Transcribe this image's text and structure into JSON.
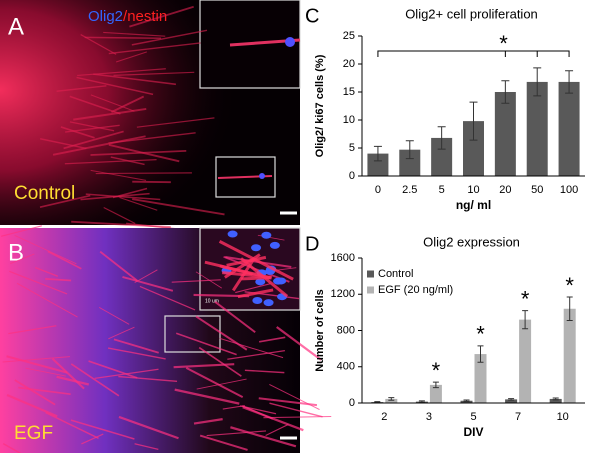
{
  "panels": [
    {
      "letter": "A",
      "label_blue": "Olig2",
      "label_red": "/nestin",
      "condition": "Control"
    },
    {
      "letter": "B",
      "condition": "EGF",
      "scale": "10 um"
    }
  ],
  "chart_data": [
    {
      "type": "bar",
      "letter": "C",
      "title": "Olig2+ cell proliferation",
      "x_label": "ng/ ml",
      "y_label": "Olig2/ ki67 cells (%)",
      "categories": [
        "0",
        "2.5",
        "5",
        "10",
        "20",
        "50",
        "100"
      ],
      "values": [
        4,
        4.7,
        6.8,
        9.8,
        15,
        16.8,
        16.8
      ],
      "errors": [
        1.3,
        1.6,
        2,
        3.4,
        2,
        2.5,
        2
      ],
      "color": "#595959",
      "ylim": [
        0,
        25
      ],
      "yticks": [
        0,
        5,
        10,
        15,
        20,
        25
      ],
      "annotation": "*"
    },
    {
      "type": "grouped_bar",
      "letter": "D",
      "title": "Olig2 expression",
      "x_label": "DIV",
      "y_label": "Number of cells",
      "categories": [
        "2",
        "3",
        "5",
        "7",
        "10"
      ],
      "series": [
        {
          "name": "Control",
          "color": "#595959",
          "values": [
            10,
            15,
            25,
            40,
            45
          ],
          "errors": [
            5,
            8,
            8,
            8,
            10
          ]
        },
        {
          "name": "EGF (20 ng/ml)",
          "color": "#b3b3b3",
          "values": [
            45,
            200,
            540,
            920,
            1040
          ],
          "errors": [
            15,
            30,
            90,
            100,
            130
          ]
        }
      ],
      "markers": [
        null,
        "*",
        "*",
        "*",
        "*"
      ],
      "ylim": [
        0,
        1600
      ],
      "yticks": [
        0,
        400,
        800,
        1200,
        1600
      ],
      "legend": "upper left"
    }
  ]
}
